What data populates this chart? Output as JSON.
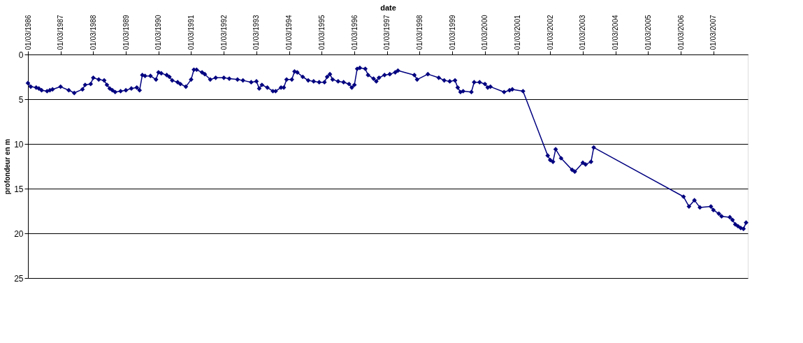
{
  "chart_data": {
    "type": "line",
    "xlabel": "date",
    "ylabel": "profondeur en m",
    "x": [
      "1986-03",
      "1986-04",
      "1986-06",
      "1986-07",
      "1986-08",
      "1986-10",
      "1986-11",
      "1986-12",
      "1987-03",
      "1987-06",
      "1987-08",
      "1987-11",
      "1987-12",
      "1988-02",
      "1988-03",
      "1988-05",
      "1988-07",
      "1988-08",
      "1988-09",
      "1988-10",
      "1988-11",
      "1989-01",
      "1989-03",
      "1989-05",
      "1989-07",
      "1989-08",
      "1989-09",
      "1989-10",
      "1989-12",
      "1990-02",
      "1990-03",
      "1990-04",
      "1990-06",
      "1990-07",
      "1990-08",
      "1990-10",
      "1990-11",
      "1991-01",
      "1991-03",
      "1991-04",
      "1991-05",
      "1991-07",
      "1991-08",
      "1991-10",
      "1991-12",
      "1992-03",
      "1992-05",
      "1992-08",
      "1992-10",
      "1993-01",
      "1993-03",
      "1993-04",
      "1993-05",
      "1993-07",
      "1993-09",
      "1993-10",
      "1993-12",
      "1994-01",
      "1994-02",
      "1994-04",
      "1994-05",
      "1994-06",
      "1994-08",
      "1994-10",
      "1994-12",
      "1995-02",
      "1995-04",
      "1995-05",
      "1995-06",
      "1995-07",
      "1995-09",
      "1995-11",
      "1996-01",
      "1996-02",
      "1996-03",
      "1996-04",
      "1996-05",
      "1996-07",
      "1996-08",
      "1996-10",
      "1996-11",
      "1996-12",
      "1997-02",
      "1997-04",
      "1997-06",
      "1997-07",
      "1998-01",
      "1998-02",
      "1998-06",
      "1998-10",
      "1998-12",
      "1999-02",
      "1999-04",
      "1999-05",
      "1999-06",
      "1999-07",
      "1999-10",
      "1999-11",
      "2000-01",
      "2000-03",
      "2000-04",
      "2000-05",
      "2000-10",
      "2000-12",
      "2001-01",
      "2001-05",
      "2002-02",
      "2002-03",
      "2002-04",
      "2002-05",
      "2002-07",
      "2002-11",
      "2002-12",
      "2003-03",
      "2003-04",
      "2003-06",
      "2003-07",
      "2006-04",
      "2006-06",
      "2006-08",
      "2006-10",
      "2007-02",
      "2007-03",
      "2007-05",
      "2007-06",
      "2007-09",
      "2007-10",
      "2007-11",
      "2007-12",
      "2008-01",
      "2008-02",
      "2008-03"
    ],
    "series": [
      {
        "color": "#000080",
        "values": [
          3.2,
          3.6,
          3.7,
          3.8,
          4.0,
          4.1,
          4.0,
          3.9,
          3.6,
          4.0,
          4.3,
          3.9,
          3.4,
          3.3,
          2.6,
          2.8,
          2.9,
          3.4,
          3.8,
          4.0,
          4.2,
          4.1,
          4.0,
          3.8,
          3.7,
          4.0,
          2.3,
          2.4,
          2.4,
          2.8,
          2.0,
          2.1,
          2.3,
          2.5,
          2.9,
          3.1,
          3.3,
          3.6,
          2.8,
          1.7,
          1.7,
          2.0,
          2.2,
          2.8,
          2.6,
          2.6,
          2.7,
          2.8,
          2.9,
          3.1,
          3.0,
          3.8,
          3.4,
          3.7,
          4.1,
          4.1,
          3.7,
          3.7,
          2.8,
          2.8,
          1.9,
          2.0,
          2.5,
          2.9,
          3.0,
          3.1,
          3.1,
          2.5,
          2.2,
          2.8,
          3.0,
          3.1,
          3.3,
          3.7,
          3.4,
          1.6,
          1.5,
          1.6,
          2.3,
          2.7,
          3.0,
          2.6,
          2.3,
          2.2,
          2.0,
          1.8,
          2.3,
          2.8,
          2.2,
          2.6,
          2.9,
          3.0,
          2.9,
          3.7,
          4.2,
          4.1,
          4.2,
          3.1,
          3.1,
          3.3,
          3.7,
          3.6,
          4.2,
          4.0,
          3.9,
          4.1,
          11.3,
          11.8,
          12.0,
          10.6,
          11.6,
          12.9,
          13.1,
          12.1,
          12.3,
          12.0,
          10.4,
          15.9,
          17.0,
          16.3,
          17.1,
          17.0,
          17.4,
          17.8,
          18.1,
          18.2,
          18.5,
          19.0,
          19.2,
          19.4,
          19.5,
          18.8
        ]
      }
    ],
    "ylim": [
      25,
      0
    ],
    "yticks": [
      0,
      5,
      10,
      15,
      20,
      25
    ],
    "xlim": [
      "1986-03-01",
      "2008-03-20"
    ],
    "xticks": [
      {
        "value": "1986-03-01",
        "label": "01/03/1986"
      },
      {
        "value": "1987-03-01",
        "label": "01/03/1987"
      },
      {
        "value": "1988-03-01",
        "label": "01/03/1988"
      },
      {
        "value": "1989-03-01",
        "label": "01/03/1989"
      },
      {
        "value": "1990-03-01",
        "label": "01/03/1990"
      },
      {
        "value": "1991-03-01",
        "label": "01/03/1991"
      },
      {
        "value": "1992-03-01",
        "label": "01/03/1992"
      },
      {
        "value": "1993-03-01",
        "label": "01/03/1993"
      },
      {
        "value": "1994-03-01",
        "label": "01/03/1994"
      },
      {
        "value": "1995-03-01",
        "label": "01/03/1995"
      },
      {
        "value": "1996-03-01",
        "label": "01/03/1996"
      },
      {
        "value": "1997-03-01",
        "label": "01/03/1997"
      },
      {
        "value": "1998-03-01",
        "label": "01/03/1998"
      },
      {
        "value": "1999-03-01",
        "label": "01/03/1999"
      },
      {
        "value": "2000-03-01",
        "label": "01/03/2000"
      },
      {
        "value": "2001-03-01",
        "label": "01/03/2001"
      },
      {
        "value": "2002-03-01",
        "label": "01/03/2002"
      },
      {
        "value": "2003-03-01",
        "label": "01/03/2003"
      },
      {
        "value": "2004-03-01",
        "label": "01/03/2004"
      },
      {
        "value": "2005-03-01",
        "label": "01/03/2005"
      },
      {
        "value": "2006-03-01",
        "label": "01/03/2006"
      },
      {
        "value": "2007-03-01",
        "label": "01/03/2007"
      }
    ],
    "grid": "y",
    "marker": "diamond",
    "line_style": "solid",
    "legend": false
  }
}
